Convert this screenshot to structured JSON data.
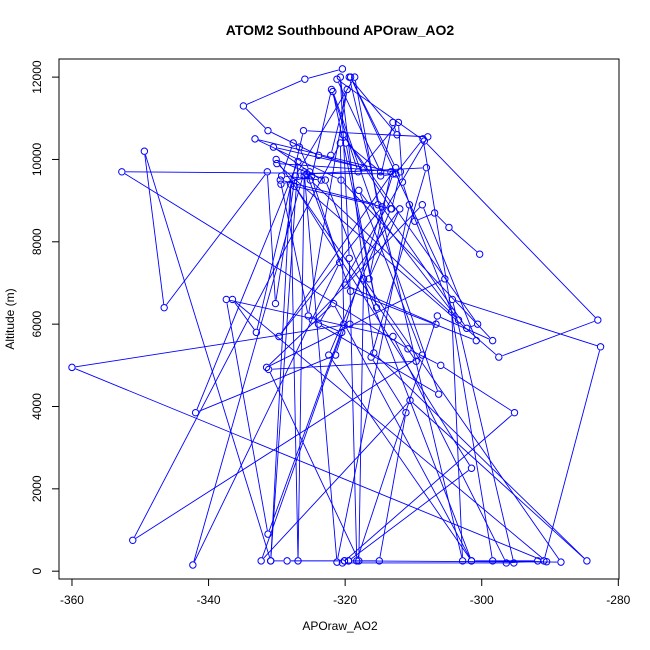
{
  "chart_data": {
    "type": "line",
    "title": "ATOM2 Southbound APOraw_AO2",
    "xlabel": "APOraw_AO2",
    "ylabel": "Altitude (m)",
    "xlim": [
      -361.9,
      -279.9
    ],
    "ylim": [
      -190,
      12440
    ],
    "xticks": [
      -360,
      -340,
      -320,
      -300,
      -280
    ],
    "yticks": [
      0,
      2000,
      4000,
      6000,
      8000,
      10000,
      12000
    ],
    "color": "#0000ff",
    "markers": "open-circle",
    "grid": false,
    "series": [
      {
        "x": [
          -320.4,
          -325.9,
          -334.9,
          -331.3,
          -323.9,
          -317.3,
          -330.5,
          -323.5,
          -329.3,
          -327.6,
          -326.7,
          -325.2,
          -320.8,
          -342.3,
          -326.0,
          -321.2,
          -310.6,
          -304.4,
          -302.8,
          -319.4,
          -312.4,
          -313.0,
          -314.8,
          -312.6,
          -308.6,
          -298.4,
          -290.5,
          -336.5,
          -333.0,
          -326.1,
          -307.9,
          -323.9,
          -306.3,
          -321.8,
          -315.4,
          -319.9,
          -314.8,
          -321.2,
          -308.4,
          -283.0,
          -297.5,
          -330.0,
          -311.9,
          -313.2,
          -320.3,
          -300.6,
          -302.2,
          -314.6,
          -329.7,
          -312.6,
          -319.2,
          -305.4,
          -331.5,
          -321.7,
          -301.5,
          -322.9,
          -330.1,
          -309.6,
          -331.2,
          -318.0,
          -317.3,
          -288.4,
          -319.5,
          -315.0,
          -311.1,
          -316.2,
          -308.1,
          -325.6,
          -319.2,
          -300.8,
          -308.7,
          -324.8,
          -320.5,
          -332.3,
          -310.5,
          -284.6,
          -315.8,
          -320.7,
          -319.4,
          -318.3,
          -306.5,
          -298.4,
          -320.6,
          -333.2,
          -313.3,
          -316.5,
          -312.0,
          -320.0,
          -306.7,
          -319.3,
          -360.0,
          -290.9,
          -282.6,
          -304.3,
          -295.3,
          -320.4,
          -295.2,
          -306.0,
          -310.8,
          -352.7,
          -313.0,
          -321.4,
          -341.9,
          -326.9,
          -330.9,
          -328.0,
          -326.9,
          -326.0,
          -325.1,
          -303.4,
          -318.0,
          -308.7,
          -351.1,
          -320.7,
          -320.2,
          -331.3,
          -337.4,
          -313.0,
          -296.4,
          -291.8,
          -301.5,
          -322.4,
          -313.3,
          -327.4,
          -301.5,
          -319.5,
          -320.1,
          -320.1,
          -328.5,
          -330.9,
          -349.4,
          -346.5,
          -331.4,
          -330.2,
          -327.3,
          -318.6,
          -315.2,
          -329.5,
          -325.4,
          -319.7,
          -322.1
        ],
        "y": [
          12200,
          11950,
          11300,
          10700,
          10100,
          9800,
          10300,
          9500,
          9600,
          10400,
          10300,
          9700,
          7500,
          150,
          9700,
          220,
          8900,
          6300,
          250,
          12000,
          10600,
          10900,
          9600,
          9650,
          10500,
          250,
          230,
          6600,
          5800,
          10700,
          10550,
          6000,
          4300,
          11650,
          6400,
          10400,
          9700,
          11950,
          10450,
          6100,
          5200,
          9900,
          9700,
          8800,
          10600,
          6000,
          5900,
          8850,
          5700,
          9800,
          12000,
          7100,
          4950,
          6500,
          250,
          9500,
          10000,
          5100,
          4900,
          250,
          7100,
          220,
          250,
          250,
          3850,
          5200,
          9800,
          9650,
          6800,
          5600,
          8900,
          6100,
          5800,
          250,
          4150,
          250,
          5300,
          12000,
          7600,
          250,
          6200,
          5600,
          9500,
          10500,
          9700,
          7100,
          8800,
          6950,
          6000,
          6000,
          4950,
          250,
          5450,
          6600,
          200,
          200,
          3850,
          5000,
          5400,
          9700,
          9650,
          5250,
          3850,
          9950,
          250,
          9400,
          250,
          9600,
          9500,
          6100,
          9250,
          5250,
          750,
          10400,
          6000,
          900,
          6600,
          5700,
          200,
          250,
          250,
          5250,
          8800,
          9350,
          2500,
          250,
          250,
          250,
          250,
          250,
          10200,
          6400,
          9700,
          6500,
          9600,
          12000,
          8900,
          9500,
          6200,
          11700,
          10100
        ]
      },
      {
        "x": [
          -329.4,
          -324.9,
          -322.0,
          -318.1,
          -312.2,
          -311.6,
          -309.8,
          -306.9,
          -304.8,
          -300.3
        ],
        "y": [
          9400,
          9600,
          11700,
          9700,
          10900,
          9450,
          8500,
          8700,
          8350,
          7700
        ]
      }
    ]
  }
}
